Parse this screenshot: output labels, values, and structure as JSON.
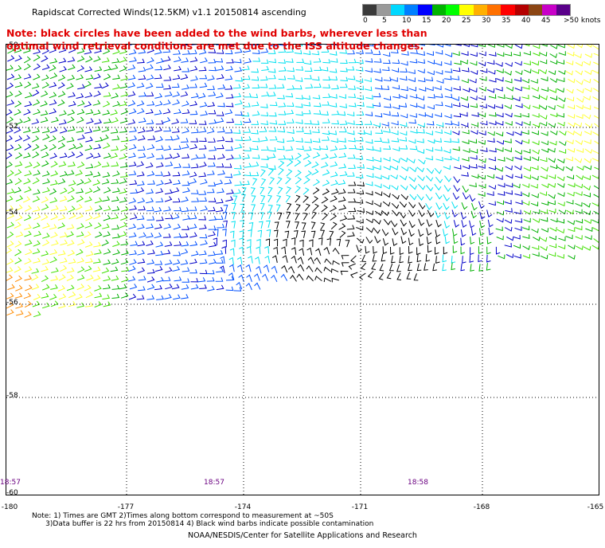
{
  "header": {
    "title": "Rapidscat Corrected Winds(12.5KM) v1.1 20150814 ascending",
    "note": "Note: black circles have been added to the wind barbs, wherever less than optimal wind retrieval conditions are met due to the ISS altitude changes."
  },
  "legend": {
    "labels": [
      "0",
      "5",
      "10",
      "15",
      "20",
      "25",
      "30",
      "35",
      "40",
      "45",
      ">50 knots"
    ],
    "colors": [
      "#3a3a3a",
      "#9a9a9a",
      "#00d8ff",
      "#007fff",
      "#0000ff",
      "#00b400",
      "#00ff00",
      "#ffff00",
      "#ffb000",
      "#ff7000",
      "#ff0000",
      "#b40000",
      "#8b4513",
      "#c800c8",
      "#5a008a"
    ]
  },
  "map": {
    "lat_labels": [
      "-50",
      "-52",
      "-54",
      "-56",
      "-58",
      "-60"
    ],
    "lon_labels": [
      "-180",
      "-177",
      "-174",
      "-171",
      "-168",
      "-165"
    ],
    "time_labels": [
      "18:57",
      "18:57",
      "18:58"
    ],
    "barb_colors": {
      "contaminated": "#000000",
      "light": "#00e0f0",
      "moderate": "#0050ff",
      "fresh": "#0000c8",
      "strong": "#00b000",
      "gale": "#40e000",
      "storm": "#ffff30",
      "severe": "#ff8c00"
    }
  },
  "footer": {
    "note_line1": "Note: 1) Times are GMT 2)Times along bottom correspond to measurement at ~50S",
    "note_line2": "      3)Data buffer is 22 hrs from 20150814 4) Black wind barbs indicate possible contamination",
    "credit": "NOAA/NESDIS/Center for Satellite Applications and Research"
  }
}
